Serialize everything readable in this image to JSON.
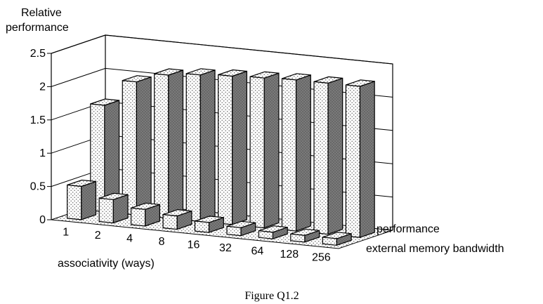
{
  "chart_data": {
    "type": "bar",
    "style": "3d",
    "ylabel_line1": "Relative",
    "ylabel_line2": "performance",
    "xlabel": "associativity (ways)",
    "caption": "Figure Q1.2",
    "categories": [
      "1",
      "2",
      "4",
      "8",
      "16",
      "32",
      "64",
      "128",
      "256"
    ],
    "ylim": [
      0,
      2.5
    ],
    "yticks": [
      "0",
      "0.5",
      "1",
      "1.5",
      "2",
      "2.5"
    ],
    "series": [
      {
        "name": "external memory bandwidth",
        "values": [
          0.5,
          0.35,
          0.25,
          0.2,
          0.15,
          0.12,
          0.1,
          0.1,
          0.1
        ]
      },
      {
        "name": "performance",
        "values": [
          1.6,
          2.0,
          2.15,
          2.2,
          2.23,
          2.25,
          2.27,
          2.27,
          2.27
        ]
      }
    ],
    "grid": true,
    "colors": {
      "front_face": "#ffffff",
      "side_face": "#7a7a7a",
      "dot": "#666666"
    }
  }
}
